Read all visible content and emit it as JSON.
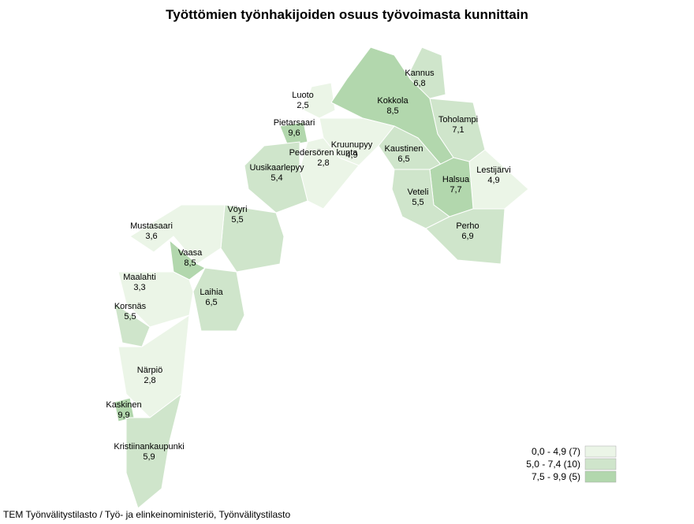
{
  "title": "Työttömien työnhakijoiden osuus työvoimasta kunnittain",
  "source": "TEM Työnvälitystilasto / Työ- ja elinkeinoministeriö, Työnvälitystilasto",
  "regions": [
    {
      "name": "Kannus",
      "value": 6.8,
      "value_label": "6,8"
    },
    {
      "name": "Luoto",
      "value": 2.5,
      "value_label": "2,5"
    },
    {
      "name": "Kokkola",
      "value": 8.5,
      "value_label": "8,5"
    },
    {
      "name": "Toholampi",
      "value": 7.1,
      "value_label": "7,1"
    },
    {
      "name": "Pietarsaari",
      "value": 9.6,
      "value_label": "9,6"
    },
    {
      "name": "Kruunupyy",
      "value": 4.9,
      "value_label": "4,9"
    },
    {
      "name": "Pedersören kunta",
      "value": 2.8,
      "value_label": "2,8"
    },
    {
      "name": "Kaustinen",
      "value": 6.5,
      "value_label": "6,5"
    },
    {
      "name": "Uusikaarlepyy",
      "value": 5.4,
      "value_label": "5,4"
    },
    {
      "name": "Lestijärvi",
      "value": 4.9,
      "value_label": "4,9"
    },
    {
      "name": "Halsua",
      "value": 7.7,
      "value_label": "7,7"
    },
    {
      "name": "Veteli",
      "value": 5.5,
      "value_label": "5,5"
    },
    {
      "name": "Vöyri",
      "value": 5.5,
      "value_label": "5,5"
    },
    {
      "name": "Perho",
      "value": 6.9,
      "value_label": "6,9"
    },
    {
      "name": "Mustasaari",
      "value": 3.6,
      "value_label": "3,6"
    },
    {
      "name": "Vaasa",
      "value": 8.5,
      "value_label": "8,5"
    },
    {
      "name": "Maalahti",
      "value": 3.3,
      "value_label": "3,3"
    },
    {
      "name": "Laihia",
      "value": 6.5,
      "value_label": "6,5"
    },
    {
      "name": "Korsnäs",
      "value": 5.5,
      "value_label": "5,5"
    },
    {
      "name": "Närpiö",
      "value": 2.8,
      "value_label": "2,8"
    },
    {
      "name": "Kaskinen",
      "value": 9.9,
      "value_label": "9,9"
    },
    {
      "name": "Kristiinankaupunki",
      "value": 5.9,
      "value_label": "5,9"
    }
  ],
  "legend": [
    {
      "label": "0,0 - 4,9 (7)",
      "min": 0,
      "max": 4.9,
      "color": "#ebf5e7"
    },
    {
      "label": "5,0 - 7,4 (10)",
      "min": 5,
      "max": 7.4,
      "color": "#cfe5cb"
    },
    {
      "label": "7,5 - 9,9 (5)",
      "min": 7.5,
      "max": 9.9,
      "color": "#b2d7ad"
    }
  ]
}
